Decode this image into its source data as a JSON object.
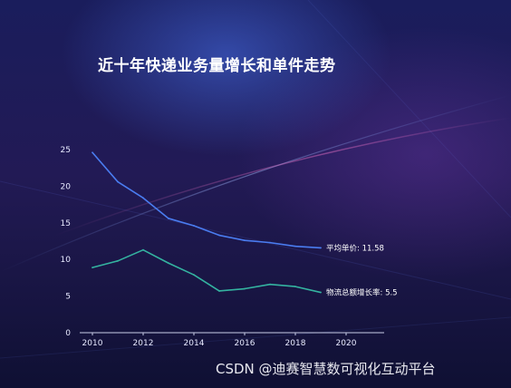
{
  "chart_data": {
    "type": "line",
    "title": "近十年快递业务量增长和单件走势",
    "xlabel": "",
    "ylabel": "",
    "x": [
      2010,
      2011,
      2012,
      2013,
      2014,
      2015,
      2016,
      2017,
      2018,
      2019
    ],
    "xlim": [
      2009.5,
      2021.5
    ],
    "ylim": [
      0,
      25
    ],
    "x_ticks": [
      "2010",
      "2012",
      "2014",
      "2016",
      "2018",
      "2020"
    ],
    "y_ticks": [
      "0",
      "5",
      "10",
      "15",
      "20",
      "25"
    ],
    "grid": false,
    "series": [
      {
        "name": "平均单价",
        "end_label": "平均单价: 11.58",
        "color": "#4a7cf0",
        "values": [
          24.6,
          20.6,
          18.4,
          15.6,
          14.6,
          13.3,
          12.6,
          12.3,
          11.8,
          11.58
        ]
      },
      {
        "name": "物流总额增长率",
        "end_label": "物流总额增长率: 5.5",
        "color": "#34b3a0",
        "values": [
          8.9,
          9.8,
          11.3,
          9.5,
          7.9,
          5.7,
          6.0,
          6.6,
          6.3,
          5.5
        ]
      }
    ]
  },
  "watermark": "CSDN @迪赛智慧数可视化互动平台"
}
